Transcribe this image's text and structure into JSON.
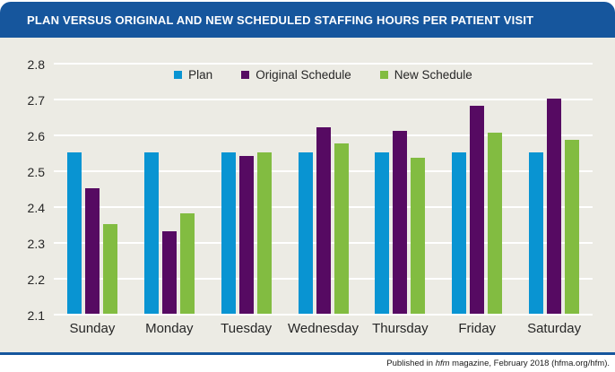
{
  "title": "PLAN VERSUS ORIGINAL AND NEW SCHEDULED STAFFING HOURS PER PATIENT VISIT",
  "footer": {
    "prefix": "Published in ",
    "italic": "hfm",
    "suffix": " magazine, February 2018 (hfma.org/hfm)."
  },
  "colors": {
    "title_bar": "#16569D",
    "chart_background": "#ECEBE4",
    "gridline": "#FFFFFF",
    "text": "#262626",
    "footer_rule": "#16569D",
    "plan": "#0994D2",
    "original_schedule": "#560A62",
    "new_schedule": "#82BC41"
  },
  "chart_data": {
    "type": "bar",
    "title": "PLAN VERSUS ORIGINAL AND NEW SCHEDULED STAFFING HOURS PER PATIENT VISIT",
    "categories": [
      "Sunday",
      "Monday",
      "Tuesday",
      "Wednesday",
      "Thursday",
      "Friday",
      "Saturday"
    ],
    "series": [
      {
        "name": "Plan",
        "color": "#0994D2",
        "values": [
          2.55,
          2.55,
          2.55,
          2.55,
          2.55,
          2.55,
          2.55
        ]
      },
      {
        "name": "Original Schedule",
        "color": "#560A62",
        "values": [
          2.45,
          2.33,
          2.54,
          2.62,
          2.61,
          2.68,
          2.7
        ]
      },
      {
        "name": "New Schedule",
        "color": "#82BC41",
        "values": [
          2.35,
          2.38,
          2.55,
          2.575,
          2.535,
          2.605,
          2.585
        ]
      }
    ],
    "xlabel": "",
    "ylabel": "",
    "ylim": [
      2.1,
      2.8
    ],
    "yticks": [
      2.1,
      2.2,
      2.3,
      2.4,
      2.5,
      2.6,
      2.7,
      2.8
    ],
    "ytick_labels": [
      "2.1",
      "2.2",
      "2.3",
      "2.4",
      "2.5",
      "2.6",
      "2.7",
      "2.8"
    ],
    "grid": true,
    "legend_position": "top-center"
  }
}
